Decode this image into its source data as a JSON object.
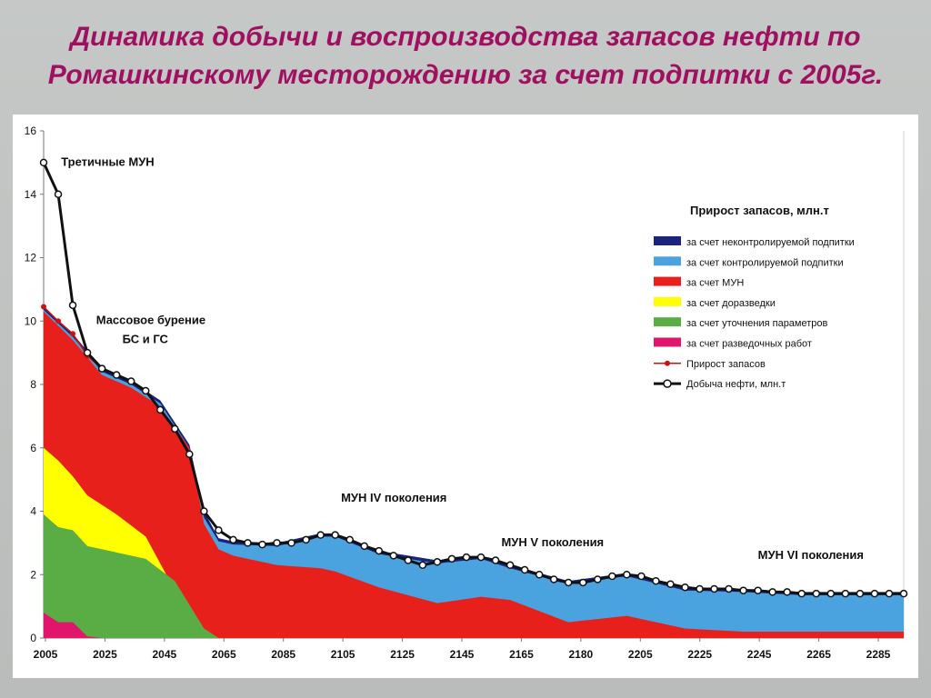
{
  "slide": {
    "title_line1": "Динамика добычи и воспроизводства запасов нефти по",
    "title_line2": "Ромашкинскому месторождению за счет подпитки с 2005г."
  },
  "chart_data": {
    "type": "area",
    "y_ticks": [
      "0",
      "2",
      "4",
      "6",
      "8",
      "10",
      "12",
      "14",
      "16"
    ],
    "ylim": [
      0,
      16
    ],
    "x_tick_labels": [
      "2005",
      "2025",
      "2045",
      "2065",
      "2085",
      "2105",
      "2125",
      "2145",
      "2165",
      "2180",
      "2205",
      "2225",
      "2245",
      "2265",
      "2285"
    ],
    "xlim": [
      2005,
      2300
    ],
    "grid": false,
    "legend": {
      "title": "Прирост запасов, млн.т",
      "items": [
        {
          "label": "за счет неконтролируемой  подпитки",
          "color": "#1a237e",
          "kind": "area"
        },
        {
          "label": "за счет контролируемой  подпитки",
          "color": "#4aa3df",
          "kind": "area"
        },
        {
          "label": "за счет МУН",
          "color": "#e8201c",
          "kind": "area"
        },
        {
          "label": "за счет доразведки",
          "color": "#ffff00",
          "kind": "area"
        },
        {
          "label": "за счет уточнения параметров",
          "color": "#5aac44",
          "kind": "area"
        },
        {
          "label": "за счет разведочных работ",
          "color": "#e0156b",
          "kind": "area"
        },
        {
          "label": "Прирост запасов",
          "color": "#d01010",
          "kind": "line-dots"
        },
        {
          "label": "Добыча нефти, млн.т",
          "color": "#111111",
          "kind": "line-circles"
        }
      ]
    },
    "annotations": [
      {
        "text": "Третичные МУН",
        "x": 2011,
        "y": 14.9
      },
      {
        "text": "Массовое бурение",
        "x": 2023,
        "y": 9.9
      },
      {
        "text": "БС и ГС",
        "x": 2032,
        "y": 9.3
      },
      {
        "text": "МУН IV поколения",
        "x": 2107,
        "y": 4.3
      },
      {
        "text": "МУН V поколения",
        "x": 2162,
        "y": 2.9
      },
      {
        "text": "МУН VI поколения",
        "x": 2250,
        "y": 2.5
      }
    ],
    "series": [
      {
        "name": "за счет разведочных работ",
        "color": "#e0156b",
        "x": [
          2005,
          2010,
          2015,
          2020,
          2025
        ],
        "y": [
          0.8,
          0.5,
          0.5,
          0.05,
          0
        ]
      },
      {
        "name": "за счет уточнения параметров",
        "color": "#5aac44",
        "x": [
          2005,
          2010,
          2015,
          2020,
          2030,
          2040,
          2050,
          2060,
          2065
        ],
        "y": [
          3.9,
          3.5,
          3.4,
          2.9,
          2.7,
          2.5,
          1.8,
          0.3,
          0
        ]
      },
      {
        "name": "за счет доразведки",
        "color": "#ffff00",
        "x": [
          2005,
          2010,
          2015,
          2020,
          2030,
          2040,
          2050,
          2055
        ],
        "y": [
          6.0,
          5.6,
          5.1,
          4.5,
          3.9,
          3.2,
          1.5,
          0.4
        ]
      },
      {
        "name": "за счет МУН",
        "color": "#e8201c",
        "x": [
          2005,
          2015,
          2025,
          2035,
          2045,
          2055,
          2060,
          2065,
          2070,
          2085,
          2100,
          2105,
          2120,
          2140,
          2155,
          2165,
          2185,
          2205,
          2225,
          2245,
          2265,
          2285,
          2300
        ],
        "y": [
          10.3,
          9.4,
          8.3,
          7.9,
          7.3,
          6.0,
          3.6,
          2.8,
          2.6,
          2.3,
          2.2,
          2.1,
          1.6,
          1.1,
          1.3,
          1.2,
          0.5,
          0.7,
          0.3,
          0.2,
          0.2,
          0.2,
          0.2
        ]
      },
      {
        "name": "за счет контролируемой  подпитки",
        "color": "#4aa3df",
        "x": [
          2005,
          2015,
          2025,
          2035,
          2045,
          2055,
          2060,
          2065,
          2070,
          2085,
          2100,
          2105,
          2120,
          2140,
          2155,
          2165,
          2185,
          2205,
          2225,
          2245,
          2265,
          2285,
          2300
        ],
        "y": [
          10.35,
          9.5,
          8.4,
          8.0,
          7.4,
          6.0,
          3.8,
          3.05,
          2.95,
          2.9,
          3.2,
          3.2,
          2.65,
          2.35,
          2.5,
          2.2,
          1.7,
          1.95,
          1.5,
          1.45,
          1.35,
          1.35,
          1.35
        ]
      },
      {
        "name": "за счет неконтролируемой  подпитки",
        "color": "#1a237e",
        "x": [
          2005,
          2015,
          2025,
          2035,
          2045,
          2055,
          2060,
          2065,
          2070,
          2085,
          2100,
          2105,
          2120,
          2140,
          2155,
          2165,
          2185,
          2205,
          2225,
          2245,
          2265,
          2285,
          2300
        ],
        "y": [
          10.45,
          9.6,
          8.5,
          8.1,
          7.5,
          6.1,
          4.0,
          3.15,
          3.05,
          3.0,
          3.3,
          3.3,
          2.75,
          2.45,
          2.6,
          2.3,
          1.8,
          2.05,
          1.6,
          1.55,
          1.45,
          1.45,
          1.45
        ]
      },
      {
        "name": "Прирост запасов",
        "color": "#d01010",
        "x": [
          2005,
          2010,
          2015,
          2020,
          2025,
          2030,
          2035,
          2040,
          2045,
          2050,
          2055,
          2060,
          2065,
          2070,
          2075,
          2080,
          2085,
          2090,
          2095,
          2100,
          2105,
          2110,
          2115,
          2120,
          2125,
          2130,
          2135,
          2140,
          2145,
          2150,
          2155,
          2160,
          2165,
          2170,
          2175,
          2180,
          2185,
          2190,
          2195,
          2200,
          2205,
          2210,
          2215,
          2220,
          2225,
          2230,
          2235,
          2240,
          2245,
          2250,
          2255,
          2260,
          2265,
          2270,
          2275,
          2280,
          2285,
          2290,
          2295,
          2300
        ],
        "y": [
          10.45,
          10.0,
          9.6,
          8.9,
          8.5,
          8.3,
          8.1,
          7.8,
          7.2,
          6.6,
          5.8,
          4.0,
          3.4,
          3.1,
          3.0,
          2.95,
          3.0,
          3.0,
          3.1,
          3.25,
          3.25,
          3.1,
          2.9,
          2.75,
          2.6,
          2.45,
          2.3,
          2.4,
          2.5,
          2.55,
          2.55,
          2.45,
          2.3,
          2.15,
          2.0,
          1.85,
          1.75,
          1.75,
          1.85,
          1.95,
          2.0,
          1.95,
          1.8,
          1.7,
          1.6,
          1.55,
          1.55,
          1.55,
          1.5,
          1.5,
          1.45,
          1.45,
          1.4,
          1.4,
          1.4,
          1.4,
          1.4,
          1.4,
          1.4,
          1.4
        ]
      },
      {
        "name": "Добыча нефти, млн.т",
        "color": "#111111",
        "x": [
          2005,
          2010,
          2015,
          2020,
          2025,
          2030,
          2035,
          2040,
          2045,
          2050,
          2055,
          2060,
          2065,
          2070,
          2075,
          2080,
          2085,
          2090,
          2095,
          2100,
          2105,
          2110,
          2115,
          2120,
          2125,
          2130,
          2135,
          2140,
          2145,
          2150,
          2155,
          2160,
          2165,
          2170,
          2175,
          2180,
          2185,
          2190,
          2195,
          2200,
          2205,
          2210,
          2215,
          2220,
          2225,
          2230,
          2235,
          2240,
          2245,
          2250,
          2255,
          2260,
          2265,
          2270,
          2275,
          2280,
          2285,
          2290,
          2295,
          2300
        ],
        "y": [
          15.0,
          14.0,
          10.5,
          9.0,
          8.5,
          8.3,
          8.1,
          7.8,
          7.2,
          6.6,
          5.8,
          4.0,
          3.4,
          3.1,
          3.0,
          2.95,
          3.0,
          3.0,
          3.1,
          3.25,
          3.25,
          3.1,
          2.9,
          2.75,
          2.6,
          2.45,
          2.3,
          2.4,
          2.5,
          2.55,
          2.55,
          2.45,
          2.3,
          2.15,
          2.0,
          1.85,
          1.75,
          1.75,
          1.85,
          1.95,
          2.0,
          1.95,
          1.8,
          1.7,
          1.6,
          1.55,
          1.55,
          1.55,
          1.5,
          1.5,
          1.45,
          1.45,
          1.4,
          1.4,
          1.4,
          1.4,
          1.4,
          1.4,
          1.4,
          1.4
        ]
      }
    ]
  }
}
